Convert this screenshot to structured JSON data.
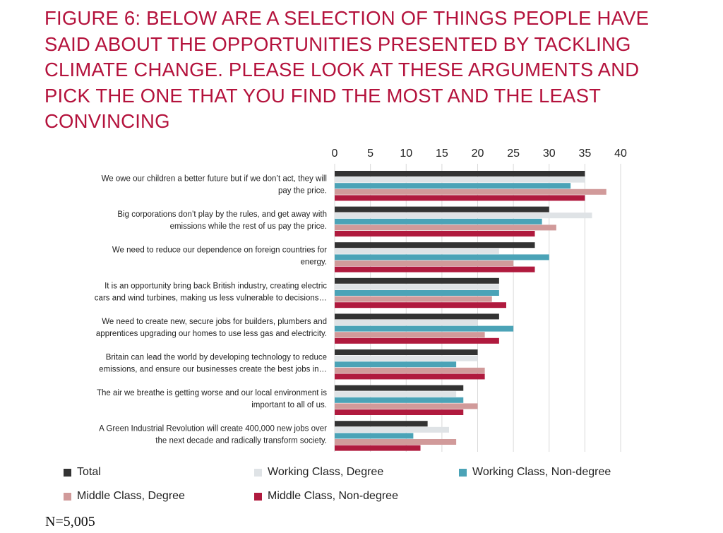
{
  "title": "FIGURE 6: BELOW ARE A SELECTION OF THINGS PEOPLE HAVE SAID ABOUT THE OPPORTUNITIES PRESENTED BY TACKLING CLIMATE CHANGE. PLEASE LOOK AT THESE ARGUMENTS AND PICK THE ONE THAT YOU FIND THE MOST AND THE LEAST CONVINCING",
  "sample_note": "N=5,005",
  "colors": {
    "title": "#b4123c",
    "gridline": "#d9d9d9"
  },
  "chart_data": {
    "type": "bar",
    "orientation": "horizontal",
    "xlim": [
      0,
      40
    ],
    "xticks": [
      0,
      5,
      10,
      15,
      20,
      25,
      30,
      35,
      40
    ],
    "x_axis_position": "top",
    "grid": true,
    "legend_position": "bottom",
    "categories": [
      [
        "We owe our children a better future but if we don’t act, they will",
        "pay the price."
      ],
      [
        "Big corporations don’t play by the rules, and get away with",
        "emissions while the rest of us pay the price."
      ],
      [
        "We need to reduce our dependence on foreign countries for",
        "energy."
      ],
      [
        "It is an opportunity bring back British industry, creating electric",
        "cars and wind turbines, making us less vulnerable to decisions…"
      ],
      [
        "We need to create new, secure jobs for builders, plumbers and",
        "apprentices upgrading our homes to use less gas and electricity."
      ],
      [
        "Britain can lead the world by developing technology to reduce",
        "emissions, and ensure our businesses create the best jobs in…"
      ],
      [
        "The air we breathe is getting worse and our local environment is",
        "important to all of us."
      ],
      [
        "A Green Industrial Revolution will create 400,000 new jobs over",
        "the next decade and radically transform society."
      ]
    ],
    "series": [
      {
        "name": "Total",
        "color": "#333333",
        "values": [
          35,
          30,
          28,
          23,
          23,
          20,
          18,
          13
        ]
      },
      {
        "name": "Working Class, Degree",
        "color": "#dfe3e6",
        "values": [
          35,
          36,
          23,
          23,
          20,
          20,
          17,
          16
        ]
      },
      {
        "name": "Working Class, Non-degree",
        "color": "#4ba3b7",
        "values": [
          33,
          29,
          30,
          23,
          25,
          17,
          18,
          11
        ]
      },
      {
        "name": "Middle Class, Degree",
        "color": "#d19a9a",
        "values": [
          38,
          31,
          25,
          22,
          21,
          21,
          20,
          17
        ]
      },
      {
        "name": "Middle Class, Non-degree",
        "color": "#b01a3e",
        "values": [
          35,
          28,
          28,
          24,
          23,
          21,
          18,
          12
        ]
      }
    ]
  }
}
